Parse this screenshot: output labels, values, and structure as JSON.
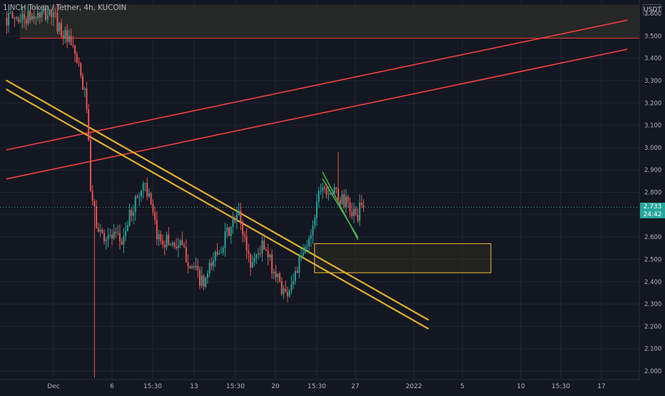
{
  "legend": {
    "symbol": "1INCH Token / Tether",
    "interval": "4h",
    "exchange": "KUCOIN"
  },
  "currency_label": "USDT",
  "last_price": {
    "price": "2.733",
    "countdown": "24:42"
  },
  "colors": {
    "background": "#131722",
    "grid": "#1f2433",
    "bullish": "#26a69a",
    "bearish": "#ef5350",
    "trendline_yellow": "#e0b02c",
    "trendline_red": "#f2423d",
    "resistance": "#e03b34",
    "zone_border": "#f2c230",
    "falling_green": "#4caf50",
    "axis_text": "#b2b5be"
  },
  "chart_data": {
    "type": "candlestick",
    "title": "1INCH Token / Tether, 4h, KUCOIN",
    "ylim": [
      1.97,
      3.64
    ],
    "y_ticks": [
      "3.600",
      "3.500",
      "3.400",
      "3.300",
      "3.200",
      "3.100",
      "3.000",
      "2.900",
      "2.800",
      "2.700",
      "2.600",
      "2.500",
      "2.400",
      "2.300",
      "2.200",
      "2.100",
      "2.000"
    ],
    "x_ticks": [
      "Dec",
      "6",
      "15:30",
      "13",
      "15:30",
      "20",
      "15:30",
      "27",
      "2022",
      "5",
      "10",
      "15:30",
      "17"
    ],
    "waypoints": [
      {
        "date": "2021-11-29",
        "price": 3.58
      },
      {
        "date": "2021-12-01",
        "price": 3.6
      },
      {
        "date": "2021-12-03",
        "price": 3.42
      },
      {
        "date": "2021-12-04",
        "price": 3.2
      },
      {
        "date": "2021-12-04 08:00",
        "price": 2.8
      },
      {
        "date": "2021-12-05",
        "price": 2.62
      },
      {
        "date": "2021-12-07",
        "price": 2.58
      },
      {
        "date": "2021-12-08",
        "price": 2.74
      },
      {
        "date": "2021-12-09",
        "price": 2.85
      },
      {
        "date": "2021-12-10",
        "price": 2.6
      },
      {
        "date": "2021-12-12",
        "price": 2.56
      },
      {
        "date": "2021-12-14",
        "price": 2.38
      },
      {
        "date": "2021-12-15",
        "price": 2.52
      },
      {
        "date": "2021-12-17",
        "price": 2.7
      },
      {
        "date": "2021-12-18",
        "price": 2.48
      },
      {
        "date": "2021-12-19",
        "price": 2.56
      },
      {
        "date": "2021-12-21",
        "price": 2.34
      },
      {
        "date": "2021-12-22",
        "price": 2.46
      },
      {
        "date": "2021-12-23",
        "price": 2.58
      },
      {
        "date": "2021-12-24",
        "price": 2.84
      },
      {
        "date": "2021-12-25",
        "price": 2.8
      },
      {
        "date": "2021-12-26",
        "price": 2.76
      },
      {
        "date": "2021-12-27",
        "price": 2.69
      },
      {
        "date": "2021-12-27 12:00",
        "price": 2.733
      }
    ],
    "wick_extremes": [
      {
        "date": "2021-12-04 12:00",
        "low": 1.97
      },
      {
        "date": "2021-12-25 08:00",
        "high": 2.98
      }
    ],
    "drawings": {
      "resistance_line": {
        "price": 3.49
      },
      "supply_zone_top": {
        "price": 3.64
      },
      "demand_zone": {
        "price_top": 2.57,
        "price_bottom": 2.44,
        "date_from": "2021-12-23",
        "date_to": "2022-01-01"
      },
      "yellow_trendline_upper": [
        {
          "date": "2021-11-27",
          "price": 3.3
        },
        {
          "date": "2022-01-02",
          "price": 2.23
        }
      ],
      "yellow_trendline_lower": [
        {
          "date": "2021-11-27",
          "price": 3.26
        },
        {
          "date": "2022-01-02",
          "price": 2.19
        }
      ],
      "red_trendline_upper": [
        {
          "date": "2021-11-27",
          "price": 2.99
        },
        {
          "date": "2022-01-19",
          "price": 3.57
        }
      ],
      "red_trendline_lower": [
        {
          "date": "2021-11-27",
          "price": 2.86
        },
        {
          "date": "2022-01-19",
          "price": 3.44
        }
      ],
      "green_falling_lines": [
        [
          {
            "date": "2021-12-24",
            "price": 2.89
          },
          {
            "date": "2021-12-27",
            "price": 2.59
          }
        ],
        [
          {
            "date": "2021-12-24",
            "price": 2.86
          },
          {
            "date": "2021-12-27",
            "price": 2.6
          }
        ]
      ]
    }
  }
}
